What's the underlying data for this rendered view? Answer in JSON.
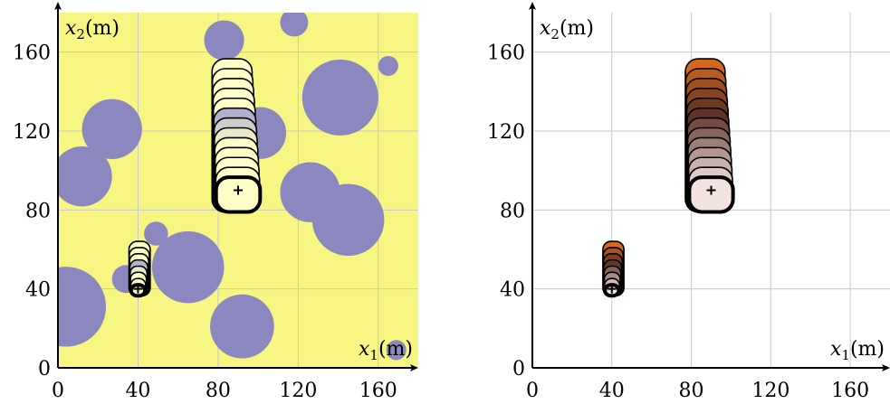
{
  "chart_data": [
    {
      "type": "scatter",
      "panel": "left",
      "xlabel": "x1(m)",
      "ylabel": "x2(m)",
      "xlim": [
        0,
        180
      ],
      "ylim": [
        0,
        180
      ],
      "xticks": [
        0,
        40,
        80,
        120,
        160
      ],
      "yticks": [
        0,
        40,
        80,
        120,
        160
      ],
      "grid": true,
      "background_color": "#f8f682",
      "obstacle_color": "#8c88bf",
      "obstacles": [
        {
          "x": 83,
          "y": 166,
          "r": 10
        },
        {
          "x": 118,
          "y": 175,
          "r": 7
        },
        {
          "x": 165,
          "y": 153,
          "r": 5
        },
        {
          "x": 141,
          "y": 137,
          "r": 19
        },
        {
          "x": 27,
          "y": 121,
          "r": 15
        },
        {
          "x": 101,
          "y": 119,
          "r": 13
        },
        {
          "x": 12,
          "y": 97,
          "r": 15
        },
        {
          "x": 126,
          "y": 89,
          "r": 15
        },
        {
          "x": 145,
          "y": 75,
          "r": 18
        },
        {
          "x": 49,
          "y": 68,
          "r": 6
        },
        {
          "x": 65,
          "y": 51,
          "r": 18
        },
        {
          "x": 34,
          "y": 45,
          "r": 7
        },
        {
          "x": 4,
          "y": 31,
          "r": 20
        },
        {
          "x": 92,
          "y": 21,
          "r": 16
        },
        {
          "x": 169,
          "y": 9,
          "r": 5
        }
      ],
      "agents": [
        {
          "start": [
            90,
            90
          ],
          "layers": 13,
          "radius": 11,
          "end": [
            85,
            150
          ],
          "top_width": 14
        },
        {
          "start": [
            40,
            40
          ],
          "layers": 8,
          "radius": 3.5,
          "end": [
            40,
            62
          ],
          "top_width": 6
        }
      ],
      "shading": "yellow-to-blue"
    },
    {
      "type": "scatter",
      "panel": "right",
      "xlabel": "x1(m)",
      "ylabel": "x2(m)",
      "xlim": [
        0,
        180
      ],
      "ylim": [
        0,
        180
      ],
      "xticks": [
        0,
        40,
        80,
        120,
        160
      ],
      "yticks": [
        0,
        40,
        80,
        120,
        160
      ],
      "grid": true,
      "background_color": "#ffffff",
      "agents": [
        {
          "start": [
            90,
            90
          ],
          "layers": 13,
          "radius": 11,
          "end": [
            85,
            150
          ],
          "top_width": 14
        },
        {
          "start": [
            40,
            40
          ],
          "layers": 8,
          "radius": 3.5,
          "end": [
            40,
            62
          ],
          "top_width": 6
        }
      ],
      "shading": "copper"
    }
  ]
}
